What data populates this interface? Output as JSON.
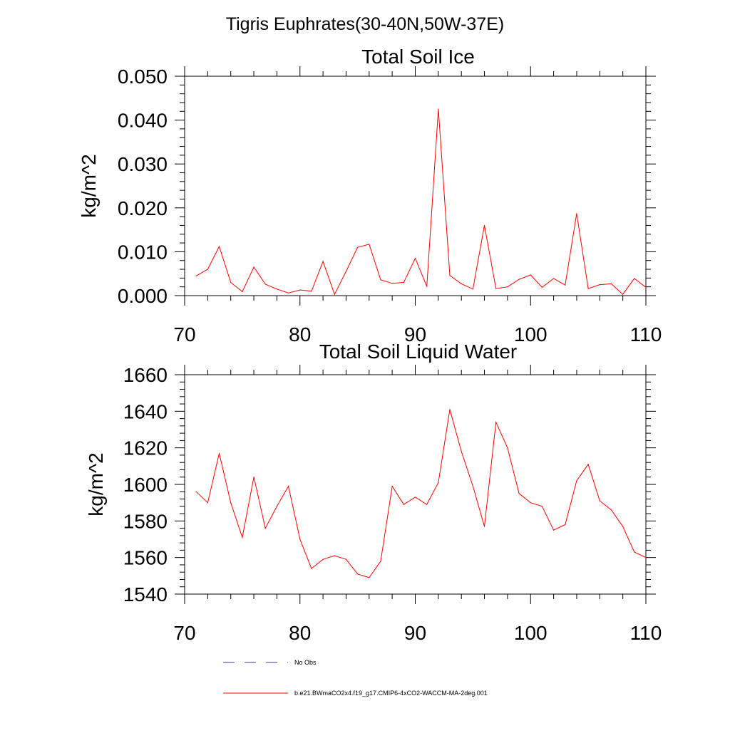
{
  "figure_title": "Tigris Euphrates(30-40N,50W-37E)",
  "colors": {
    "model": "#ff0000",
    "obs": "#3c3c9a",
    "axis": "#000000"
  },
  "legend": {
    "obs_label": "No Obs",
    "model_label": "b.e21.BWmaCO2x4.f19_g17.CMIP6-4xCO2-WACCM-MA-2deg.001"
  },
  "chart_data": [
    {
      "type": "line",
      "title": "Total Soil Ice",
      "xlabel": "",
      "ylabel": "kg/m^2",
      "xlim": [
        70,
        110
      ],
      "ylim": [
        0,
        0.05
      ],
      "xticks": [
        70,
        80,
        90,
        100,
        110
      ],
      "xtick_labels": [
        "70",
        "80",
        "90",
        "100",
        "110"
      ],
      "yticks": [
        0,
        0.01,
        0.02,
        0.03,
        0.04,
        0.05
      ],
      "ytick_labels": [
        "0.000",
        "0.010",
        "0.020",
        "0.030",
        "0.040",
        "0.050"
      ],
      "grid": false,
      "series": [
        {
          "name": "b.e21.BWmaCO2x4.f19_g17.CMIP6-4xCO2-WACCM-MA-2deg.001",
          "x": [
            71,
            72,
            73,
            74,
            75,
            76,
            77,
            78,
            79,
            80,
            81,
            82,
            83,
            84,
            85,
            86,
            87,
            88,
            89,
            90,
            91,
            92,
            93,
            94,
            95,
            96,
            97,
            98,
            99,
            100,
            101,
            102,
            103,
            104,
            105,
            106,
            107,
            108,
            109,
            110
          ],
          "values": [
            0.0045,
            0.006,
            0.0112,
            0.003,
            0.0009,
            0.0065,
            0.0026,
            0.0015,
            0.0006,
            0.0013,
            0.001,
            0.0078,
            0.0003,
            0.0055,
            0.011,
            0.0117,
            0.0036,
            0.0028,
            0.003,
            0.0085,
            0.0021,
            0.0425,
            0.0046,
            0.0027,
            0.0015,
            0.016,
            0.0016,
            0.002,
            0.0037,
            0.0047,
            0.0019,
            0.0039,
            0.0024,
            0.0187,
            0.0016,
            0.0025,
            0.0027,
            0.0003,
            0.0039,
            0.0019
          ]
        }
      ]
    },
    {
      "type": "line",
      "title": "Total Soil Liquid Water",
      "xlabel": "",
      "ylabel": "kg/m^2",
      "xlim": [
        70,
        110
      ],
      "ylim": [
        1540,
        1660
      ],
      "xticks": [
        70,
        80,
        90,
        100,
        110
      ],
      "xtick_labels": [
        "70",
        "80",
        "90",
        "100",
        "110"
      ],
      "yticks": [
        1540,
        1560,
        1580,
        1600,
        1620,
        1640,
        1660
      ],
      "ytick_labels": [
        "1540",
        "1560",
        "1580",
        "1600",
        "1620",
        "1640",
        "1660"
      ],
      "grid": false,
      "series": [
        {
          "name": "b.e21.BWmaCO2x4.f19_g17.CMIP6-4xCO2-WACCM-MA-2deg.001",
          "x": [
            71,
            72,
            73,
            74,
            75,
            76,
            77,
            78,
            79,
            80,
            81,
            82,
            83,
            84,
            85,
            86,
            87,
            88,
            89,
            90,
            91,
            92,
            93,
            94,
            95,
            96,
            97,
            98,
            99,
            100,
            101,
            102,
            103,
            104,
            105,
            106,
            107,
            108,
            109,
            110
          ],
          "values": [
            1596,
            1590,
            1617,
            1590,
            1571,
            1604,
            1576,
            1588,
            1599,
            1570,
            1554,
            1559,
            1561,
            1559,
            1551,
            1549,
            1558,
            1599,
            1589,
            1593,
            1589,
            1601,
            1641,
            1618,
            1599,
            1577,
            1634,
            1620,
            1595,
            1590,
            1588,
            1575,
            1578,
            1602,
            1611,
            1591,
            1586,
            1577,
            1563,
            1560
          ]
        }
      ]
    }
  ]
}
